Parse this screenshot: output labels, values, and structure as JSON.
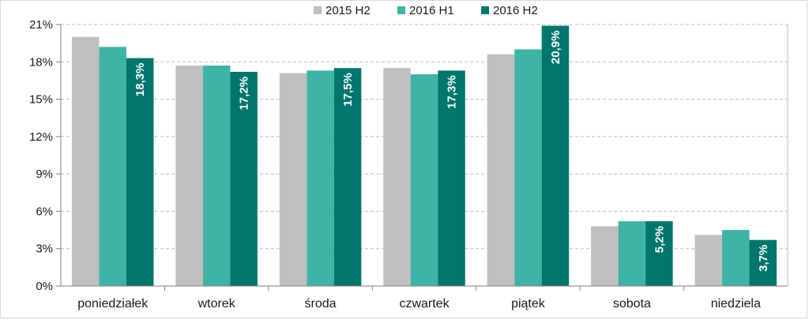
{
  "chart_data": {
    "type": "bar",
    "categories": [
      "poniedziałek",
      "wtorek",
      "środa",
      "czwartek",
      "piątek",
      "sobota",
      "niedziela"
    ],
    "series": [
      {
        "name": "2015 H2",
        "color": "#bfbfbf",
        "values": [
          20.0,
          17.7,
          17.1,
          17.5,
          18.6,
          4.8,
          4.1
        ]
      },
      {
        "name": "2016 H1",
        "color": "#3fb3a6",
        "values": [
          19.2,
          17.7,
          17.3,
          17.0,
          19.0,
          5.2,
          4.5
        ]
      },
      {
        "name": "2016 H2",
        "color": "#00766c",
        "values": [
          18.3,
          17.2,
          17.5,
          17.3,
          20.9,
          5.2,
          3.7
        ],
        "data_labels": [
          "18,3%",
          "17,2%",
          "17,5%",
          "17,3%",
          "20,9%",
          "5,2%",
          "3,7%"
        ]
      }
    ],
    "yticks": [
      "0%",
      "3%",
      "6%",
      "9%",
      "12%",
      "15%",
      "18%",
      "21%"
    ],
    "ylim": [
      0,
      21
    ],
    "y_step": 3,
    "grid": "dashed horizontal",
    "legend_position": "top-center"
  }
}
